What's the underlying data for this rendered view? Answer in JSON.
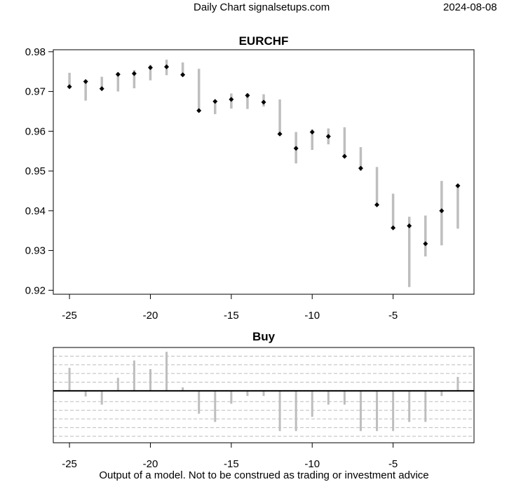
{
  "header": {
    "site": "Daily Chart signalsetups.com",
    "date": "2024-08-08"
  },
  "footer": {
    "disclaimer": "Output of a model. Not to be construed as trading or investment advice"
  },
  "chart_data": [
    {
      "type": "range",
      "title": "EURCHF",
      "x_ticks": [
        -25,
        -20,
        -15,
        -10,
        -5
      ],
      "y_ticks": [
        "0.92",
        "0.93",
        "0.94",
        "0.95",
        "0.96",
        "0.97",
        "0.98"
      ],
      "xlim": [
        -26,
        0
      ],
      "ylim": [
        0.919,
        0.9805
      ],
      "range_color": "#bebebe",
      "points": [
        {
          "x": -25,
          "low": 0.971,
          "high": 0.9747,
          "close": 0.9712
        },
        {
          "x": -24,
          "low": 0.9677,
          "high": 0.9727,
          "close": 0.9725
        },
        {
          "x": -23,
          "low": 0.9704,
          "high": 0.9737,
          "close": 0.9707
        },
        {
          "x": -22,
          "low": 0.97,
          "high": 0.9748,
          "close": 0.9743
        },
        {
          "x": -21,
          "low": 0.9708,
          "high": 0.9754,
          "close": 0.9745
        },
        {
          "x": -20,
          "low": 0.9728,
          "high": 0.9767,
          "close": 0.976
        },
        {
          "x": -19,
          "low": 0.9741,
          "high": 0.978,
          "close": 0.9762
        },
        {
          "x": -18,
          "low": 0.9738,
          "high": 0.9773,
          "close": 0.9742
        },
        {
          "x": -17,
          "low": 0.9648,
          "high": 0.9757,
          "close": 0.9652
        },
        {
          "x": -16,
          "low": 0.9643,
          "high": 0.9677,
          "close": 0.9675
        },
        {
          "x": -15,
          "low": 0.9657,
          "high": 0.9695,
          "close": 0.968
        },
        {
          "x": -14,
          "low": 0.9656,
          "high": 0.9695,
          "close": 0.969
        },
        {
          "x": -13,
          "low": 0.9662,
          "high": 0.9693,
          "close": 0.9673
        },
        {
          "x": -12,
          "low": 0.9591,
          "high": 0.968,
          "close": 0.9593
        },
        {
          "x": -11,
          "low": 0.9519,
          "high": 0.9598,
          "close": 0.9557
        },
        {
          "x": -10,
          "low": 0.9553,
          "high": 0.9605,
          "close": 0.9598
        },
        {
          "x": -9,
          "low": 0.9567,
          "high": 0.9607,
          "close": 0.9587
        },
        {
          "x": -8,
          "low": 0.9533,
          "high": 0.961,
          "close": 0.9537
        },
        {
          "x": -7,
          "low": 0.95,
          "high": 0.956,
          "close": 0.9507
        },
        {
          "x": -6,
          "low": 0.9412,
          "high": 0.951,
          "close": 0.9415
        },
        {
          "x": -5,
          "low": 0.9353,
          "high": 0.9443,
          "close": 0.9357
        },
        {
          "x": -4,
          "low": 0.9208,
          "high": 0.9385,
          "close": 0.9362
        },
        {
          "x": -3,
          "low": 0.9285,
          "high": 0.9388,
          "close": 0.9317
        },
        {
          "x": -2,
          "low": 0.9313,
          "high": 0.9475,
          "close": 0.94
        },
        {
          "x": -1,
          "low": 0.9355,
          "high": 0.9465,
          "close": 0.9463
        }
      ]
    },
    {
      "type": "bar",
      "title": "Buy",
      "x_ticks": [
        -25,
        -20,
        -15,
        -10,
        -5
      ],
      "xlim": [
        -26,
        0
      ],
      "ylim": [
        -12,
        10
      ],
      "gridlines": [
        -10.5,
        -8.5,
        -6.5,
        -4.5,
        -2.5,
        2,
        4,
        6,
        8
      ],
      "grid": true,
      "bar_color": "#bebebe",
      "points": [
        {
          "x": -25,
          "value": 5.3
        },
        {
          "x": -24,
          "value": -1.3
        },
        {
          "x": -23,
          "value": -3.2
        },
        {
          "x": -22,
          "value": 3.0
        },
        {
          "x": -21,
          "value": 7.0
        },
        {
          "x": -20,
          "value": 5.0
        },
        {
          "x": -19,
          "value": 9.0
        },
        {
          "x": -18,
          "value": 0.8
        },
        {
          "x": -17,
          "value": -5.3
        },
        {
          "x": -16,
          "value": -7.2
        },
        {
          "x": -15,
          "value": -3.0
        },
        {
          "x": -14,
          "value": -1.2
        },
        {
          "x": -13,
          "value": -1.2
        },
        {
          "x": -12,
          "value": -9.3
        },
        {
          "x": -11,
          "value": -9.3
        },
        {
          "x": -10,
          "value": -6.0
        },
        {
          "x": -9,
          "value": -3.2
        },
        {
          "x": -8,
          "value": -3.2
        },
        {
          "x": -7,
          "value": -9.3
        },
        {
          "x": -6,
          "value": -9.3
        },
        {
          "x": -5,
          "value": -9.3
        },
        {
          "x": -4,
          "value": -7.2
        },
        {
          "x": -3,
          "value": -7.2
        },
        {
          "x": -2,
          "value": -1.2
        },
        {
          "x": -1,
          "value": 3.2
        }
      ]
    }
  ]
}
